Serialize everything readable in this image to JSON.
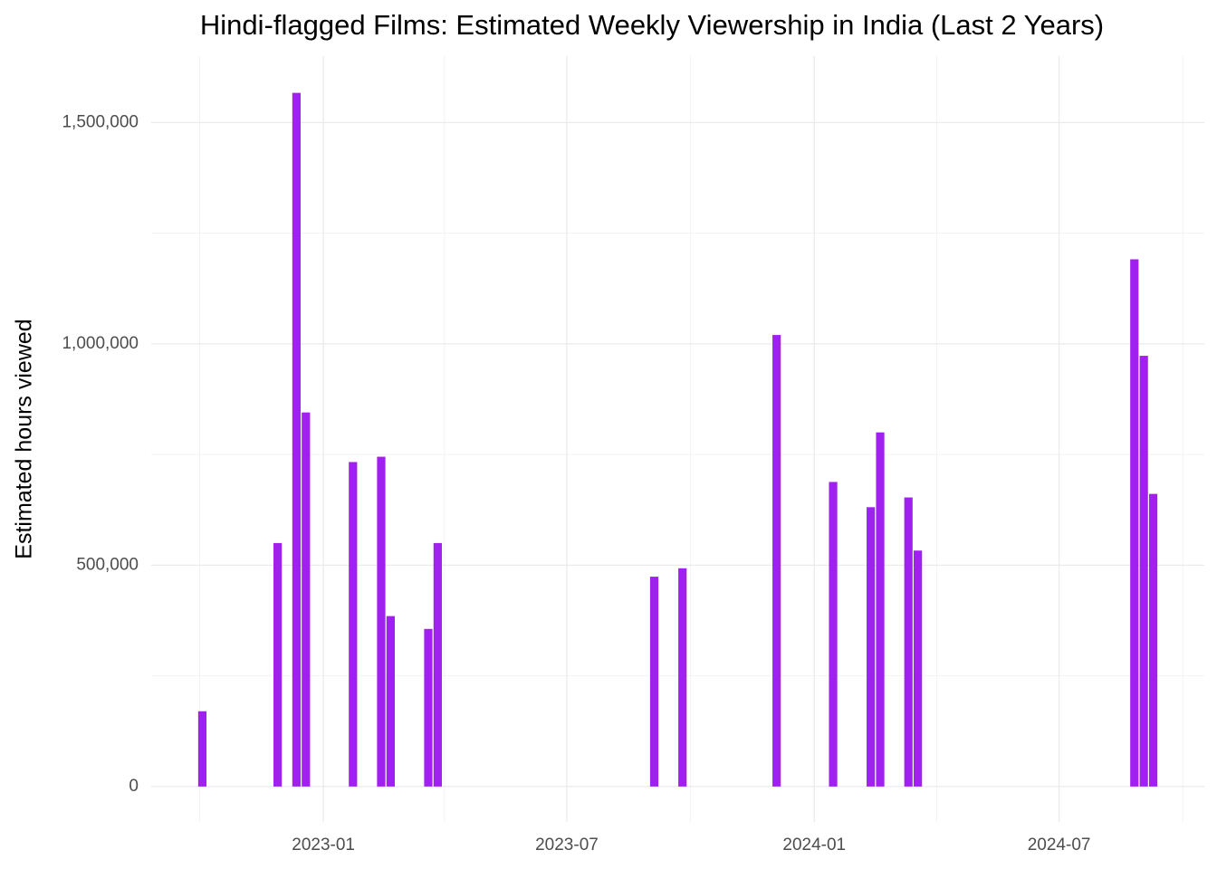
{
  "chart_data": {
    "type": "bar",
    "title": "Hindi-flagged Films: Estimated Weekly Viewership in India (Last 2 Years)",
    "y_label": "Estimated hours viewed",
    "x": [
      "2022-10-03",
      "2022-11-28",
      "2022-12-12",
      "2022-12-19",
      "2023-01-23",
      "2023-02-13",
      "2023-02-20",
      "2023-03-20",
      "2023-03-27",
      "2023-09-04",
      "2023-09-25",
      "2023-12-04",
      "2024-01-15",
      "2024-02-12",
      "2024-02-19",
      "2024-03-11",
      "2024-03-18",
      "2024-08-26",
      "2024-09-02",
      "2024-09-09"
    ],
    "values": [
      170000,
      550000,
      1567000,
      845000,
      733000,
      745000,
      385000,
      356000,
      550000,
      474000,
      493000,
      1020000,
      688000,
      631000,
      800000,
      653000,
      533000,
      1191000,
      973000,
      661000
    ],
    "color": "#a020f0",
    "xlim": [
      "2022-08-26",
      "2024-10-17"
    ],
    "xticks": [
      {
        "value": "2023-01-01",
        "label": "2023-01"
      },
      {
        "value": "2023-07-01",
        "label": "2023-07"
      },
      {
        "value": "2024-01-01",
        "label": "2024-01"
      },
      {
        "value": "2024-07-01",
        "label": "2024-07"
      }
    ],
    "minor_xticks": [
      "2022-10-01",
      "2023-04-01",
      "2023-10-01",
      "2024-04-01",
      "2024-10-01"
    ],
    "ylim": [
      -80000,
      1650000
    ],
    "yticks": [
      0,
      {
        "value": 500000,
        "label": "500,000"
      },
      {
        "value": 1000000,
        "label": "1,000,000"
      },
      {
        "value": 1500000,
        "label": "1,500,000"
      }
    ],
    "minor_yticks": [
      250000,
      750000,
      1250000
    ],
    "grid": true
  }
}
